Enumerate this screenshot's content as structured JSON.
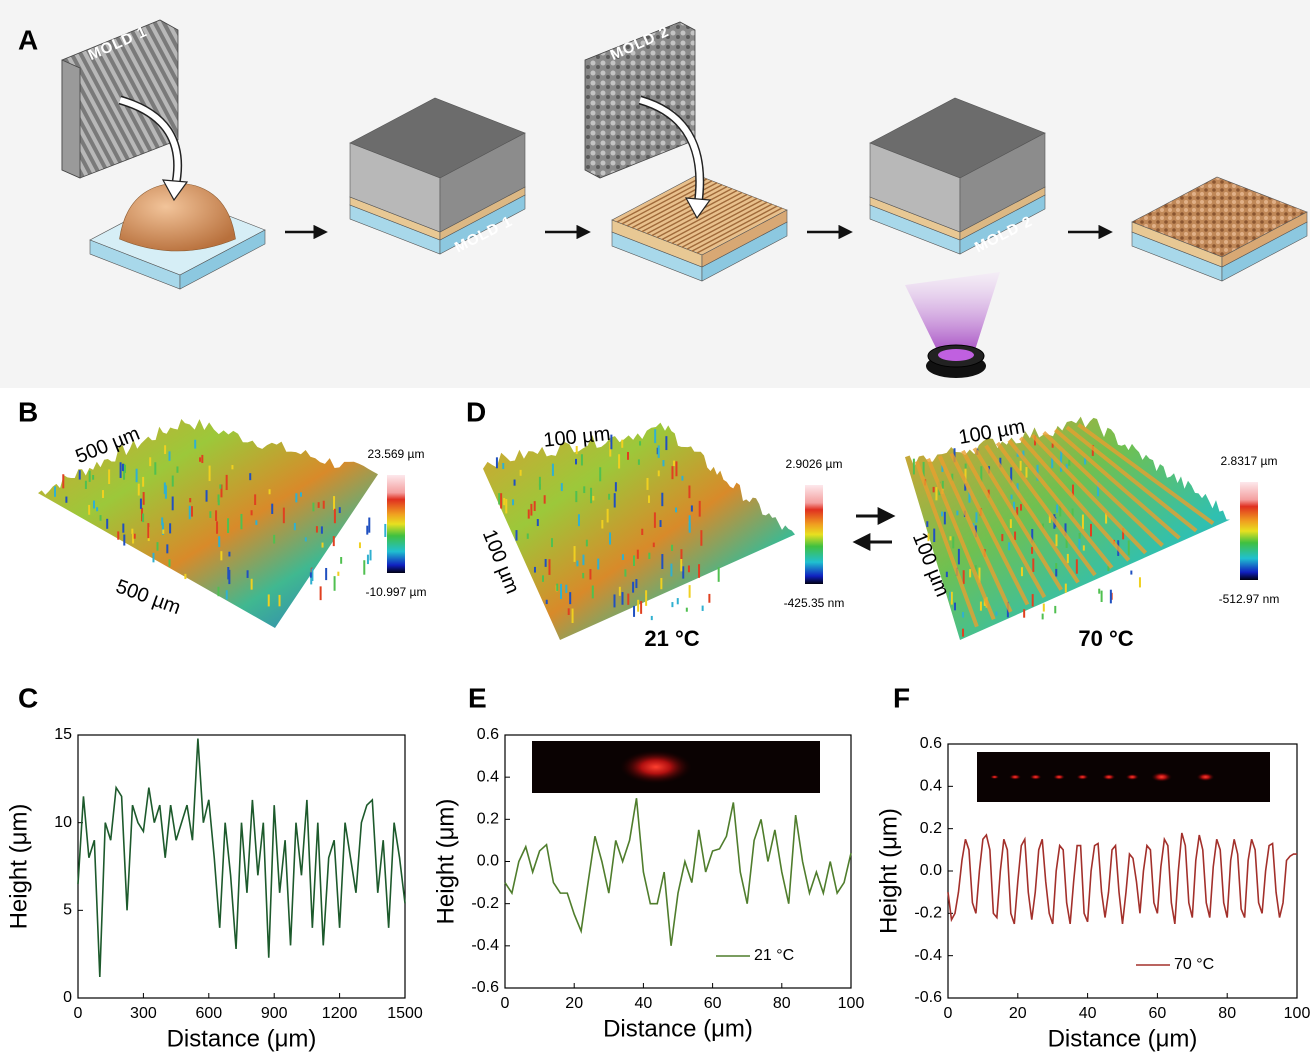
{
  "figure": {
    "panel_labels": [
      "A",
      "B",
      "C",
      "D",
      "E",
      "F"
    ],
    "a": {
      "mold_1_top": "MOLD 1",
      "mold_1_block": "MOLD 1",
      "mold_2_top": "MOLD 2",
      "mold_2_block": "MOLD 2"
    },
    "b": {
      "x_size": "500 µm",
      "y_size": "500 µm",
      "max": "23.569 µm",
      "min": "-10.997 µm"
    },
    "d": {
      "left": {
        "x_size": "100 µm",
        "y_size": "100 µm",
        "max": "2.9026 µm",
        "min": "-425.35 nm",
        "temperature": "21 °C"
      },
      "right": {
        "x_size": "100 µm",
        "y_size": "100 µm",
        "max": "2.8317 µm",
        "min": "-512.97 nm",
        "temperature": "70 °C"
      }
    }
  },
  "chart_data": [
    {
      "type": "line",
      "x_label": "Distance (μm)",
      "y_label": "Height (μm)",
      "color": "#1d5a2c",
      "xlim": [
        0,
        1500
      ],
      "xticks": [
        0,
        300,
        600,
        900,
        1200,
        1500
      ],
      "ylim": [
        0,
        15
      ],
      "yticks": [
        0,
        5,
        10,
        15
      ],
      "x": [
        0,
        25,
        50,
        75,
        100,
        125,
        150,
        175,
        200,
        225,
        250,
        275,
        300,
        325,
        350,
        375,
        400,
        425,
        450,
        475,
        500,
        525,
        550,
        575,
        600,
        625,
        650,
        675,
        700,
        725,
        750,
        775,
        800,
        825,
        850,
        875,
        900,
        925,
        950,
        975,
        1000,
        1025,
        1050,
        1075,
        1100,
        1125,
        1150,
        1175,
        1200,
        1225,
        1250,
        1275,
        1300,
        1325,
        1350,
        1375,
        1400,
        1425,
        1450,
        1475,
        1500
      ],
      "values": [
        6.5,
        11.5,
        8,
        9,
        1.2,
        10,
        9,
        12,
        11.5,
        5,
        11,
        10,
        9.5,
        12,
        10,
        11,
        8,
        11,
        9,
        10,
        11,
        9,
        14.8,
        10,
        11.3,
        8,
        4,
        10,
        7,
        2.8,
        10,
        6,
        11.3,
        7,
        10,
        2.3,
        11,
        6,
        9,
        3,
        10,
        7,
        11.3,
        4,
        10,
        3,
        8,
        9,
        4,
        10,
        8,
        6,
        10,
        11,
        11.3,
        6,
        9,
        4,
        10,
        8,
        5.4
      ]
    },
    {
      "type": "line",
      "x_label": "Distance (μm)",
      "y_label": "Height (μm)",
      "xlim": [
        0,
        100
      ],
      "xticks": [
        0,
        20,
        40,
        60,
        80,
        100
      ],
      "ylim": [
        -0.6,
        0.6
      ],
      "yticks": [
        -0.6,
        -0.4,
        -0.2,
        {
          "value": 0,
          "label": "0.0"
        },
        0.2,
        0.4,
        0.6
      ],
      "x": [
        0,
        2,
        4,
        6,
        8,
        10,
        12,
        14,
        16,
        18,
        20,
        22,
        24,
        26,
        28,
        30,
        32,
        34,
        36,
        38,
        40,
        42,
        44,
        46,
        48,
        50,
        52,
        54,
        56,
        58,
        60,
        62,
        64,
        66,
        68,
        70,
        72,
        74,
        76,
        78,
        80,
        82,
        84,
        86,
        88,
        90,
        92,
        94,
        96,
        98,
        100
      ],
      "series": [
        {
          "name": "21 °C",
          "color": "#4f7d2c",
          "values": [
            -0.1,
            -0.15,
            0.0,
            0.07,
            -0.05,
            0.05,
            0.08,
            -0.1,
            -0.15,
            -0.15,
            -0.25,
            -0.33,
            -0.1,
            0.12,
            0.0,
            -0.15,
            0.1,
            0.0,
            0.1,
            0.3,
            -0.05,
            -0.2,
            -0.2,
            -0.05,
            -0.4,
            -0.15,
            0.0,
            -0.1,
            0.15,
            -0.05,
            0.05,
            0.06,
            0.12,
            0.28,
            -0.05,
            -0.2,
            0.1,
            0.2,
            0.0,
            0.15,
            -0.05,
            -0.2,
            0.22,
            0.0,
            -0.15,
            -0.05,
            -0.15,
            0.0,
            -0.15,
            -0.1,
            0.04
          ]
        }
      ]
    },
    {
      "type": "line",
      "x_label": "Distance (μm)",
      "y_label": "Height (μm)",
      "xlim": [
        0,
        100
      ],
      "xticks": [
        0,
        20,
        40,
        60,
        80,
        100
      ],
      "ylim": [
        -0.6,
        0.6
      ],
      "yticks": [
        -0.6,
        -0.4,
        -0.2,
        {
          "value": 0,
          "label": "0.0"
        },
        0.2,
        0.4,
        0.6
      ],
      "x": [
        0,
        1,
        2,
        3,
        4,
        5,
        6,
        7,
        8,
        9,
        10,
        11,
        12,
        13,
        14,
        15,
        16,
        17,
        18,
        19,
        20,
        21,
        22,
        23,
        24,
        25,
        26,
        27,
        28,
        29,
        30,
        31,
        32,
        33,
        34,
        35,
        36,
        37,
        38,
        39,
        40,
        41,
        42,
        43,
        44,
        45,
        46,
        47,
        48,
        49,
        50,
        51,
        52,
        53,
        54,
        55,
        56,
        57,
        58,
        59,
        60,
        61,
        62,
        63,
        64,
        65,
        66,
        67,
        68,
        69,
        70,
        71,
        72,
        73,
        74,
        75,
        76,
        77,
        78,
        79,
        80,
        81,
        82,
        83,
        84,
        85,
        86,
        87,
        88,
        89,
        90,
        91,
        92,
        93,
        94,
        95,
        96,
        97,
        98,
        99,
        100
      ],
      "series": [
        {
          "name": "70 °C",
          "color": "#a3302b",
          "values": [
            -0.1,
            -0.23,
            -0.2,
            -0.1,
            0.05,
            0.15,
            0.1,
            -0.15,
            -0.2,
            0.0,
            0.15,
            0.17,
            0.1,
            -0.2,
            -0.22,
            0.0,
            0.15,
            0.1,
            -0.2,
            -0.25,
            -0.05,
            0.12,
            0.15,
            -0.1,
            -0.23,
            -0.1,
            0.1,
            0.15,
            -0.05,
            -0.2,
            -0.25,
            0.0,
            0.12,
            0.1,
            -0.15,
            -0.25,
            -0.05,
            0.12,
            0.12,
            -0.2,
            -0.24,
            0.0,
            0.12,
            0.13,
            -0.1,
            -0.22,
            -0.1,
            0.1,
            0.12,
            -0.1,
            -0.25,
            -0.1,
            0.08,
            0.06,
            -0.05,
            -0.2,
            0.0,
            0.12,
            0.1,
            -0.15,
            -0.2,
            0.02,
            0.15,
            0.12,
            -0.15,
            -0.25,
            0.0,
            0.18,
            0.12,
            -0.15,
            -0.22,
            0.05,
            0.17,
            0.1,
            -0.15,
            -0.22,
            0.02,
            0.15,
            0.1,
            -0.15,
            -0.22,
            0.05,
            0.15,
            0.08,
            -0.18,
            -0.22,
            0.05,
            0.15,
            0.1,
            -0.15,
            -0.2,
            0.0,
            0.12,
            0.13,
            -0.1,
            -0.22,
            -0.15,
            0.05,
            0.07,
            0.08,
            0.08
          ]
        }
      ]
    }
  ]
}
